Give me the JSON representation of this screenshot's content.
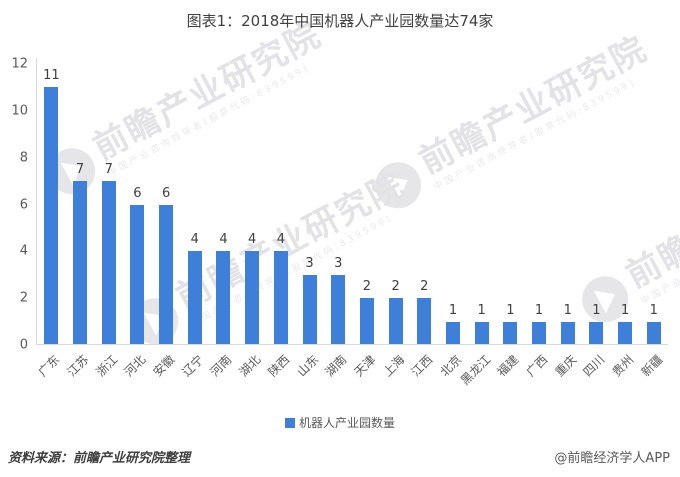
{
  "title": "图表1：2018年中国机器人产业园数量达74家",
  "chart_data": {
    "type": "bar",
    "title": "图表1：2018年中国机器人产业园数量达74家",
    "categories": [
      "广东",
      "江苏",
      "浙江",
      "河北",
      "安徽",
      "辽宁",
      "河南",
      "湖北",
      "陕西",
      "山东",
      "湖南",
      "天津",
      "上海",
      "江西",
      "北京",
      "黑龙江",
      "福建",
      "广西",
      "重庆",
      "四川",
      "贵州",
      "新疆"
    ],
    "values": [
      11,
      7,
      7,
      6,
      6,
      4,
      4,
      4,
      4,
      3,
      3,
      2,
      2,
      2,
      1,
      1,
      1,
      1,
      1,
      1,
      1,
      1
    ],
    "series_name": "机器人产业园数量",
    "xlabel": "",
    "ylabel": "",
    "ylim": [
      0,
      12
    ],
    "yticks": [
      0,
      2,
      4,
      6,
      8,
      10,
      12
    ],
    "grid": false,
    "legend_position": "bottom",
    "bar_color": "#3E7FD9"
  },
  "legend": {
    "label": "机器人产业园数量"
  },
  "footer": {
    "source": "资料来源：前瞻产业研究院整理",
    "credit": "@前瞻经济学人APP"
  },
  "watermark": {
    "logo_text": "前瞻产业研究院",
    "sub_text": "中国产业咨询领导者(股票代码:839599)"
  },
  "colors": {
    "bar": "#3E7FD9",
    "axis_line": "#D9D9D9",
    "tick_text": "#595959",
    "value_text": "#404040",
    "title_text": "#404040",
    "watermark_text": "#E3E3E7"
  }
}
